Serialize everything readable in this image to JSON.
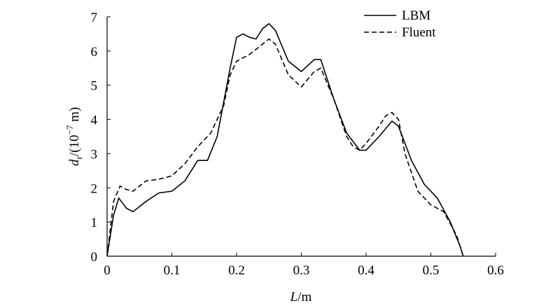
{
  "chart_data": {
    "type": "line",
    "x_label": [
      "L",
      "/m"
    ],
    "y_label": [
      "d",
      "r",
      "/(10",
      "−7",
      " m)"
    ],
    "xlim": [
      0,
      0.6
    ],
    "xticks": [
      0,
      0.1,
      0.2,
      0.3,
      0.4,
      0.5,
      0.6
    ],
    "ylim": [
      0,
      7
    ],
    "yticks": [
      0,
      1,
      2,
      3,
      4,
      5,
      6,
      7
    ],
    "legend": "upper right",
    "series": [
      {
        "name": "LBM",
        "color": "#000000",
        "dash": "solid",
        "x": [
          0,
          0.01,
          0.018,
          0.03,
          0.04,
          0.06,
          0.08,
          0.1,
          0.12,
          0.14,
          0.155,
          0.17,
          0.19,
          0.2,
          0.21,
          0.22,
          0.23,
          0.24,
          0.25,
          0.26,
          0.28,
          0.3,
          0.32,
          0.33,
          0.35,
          0.37,
          0.39,
          0.4,
          0.42,
          0.44,
          0.45,
          0.47,
          0.49,
          0.51,
          0.53,
          0.545,
          0.55
        ],
        "values": [
          0,
          1.2,
          1.7,
          1.4,
          1.3,
          1.6,
          1.85,
          1.9,
          2.2,
          2.8,
          2.8,
          3.5,
          5.5,
          6.4,
          6.5,
          6.4,
          6.35,
          6.65,
          6.8,
          6.6,
          5.7,
          5.4,
          5.75,
          5.75,
          4.6,
          3.6,
          3.1,
          3.1,
          3.5,
          3.95,
          3.8,
          2.8,
          2.1,
          1.7,
          1.0,
          0.3,
          0
        ]
      },
      {
        "name": "Fluent",
        "color": "#000000",
        "dash": "dashed",
        "x": [
          0,
          0.01,
          0.02,
          0.03,
          0.04,
          0.06,
          0.08,
          0.1,
          0.12,
          0.14,
          0.16,
          0.18,
          0.19,
          0.2,
          0.22,
          0.24,
          0.25,
          0.26,
          0.28,
          0.3,
          0.32,
          0.33,
          0.35,
          0.37,
          0.38,
          0.39,
          0.4,
          0.42,
          0.43,
          0.44,
          0.45,
          0.46,
          0.48,
          0.5,
          0.52,
          0.54,
          0.55
        ],
        "values": [
          0,
          1.6,
          2.05,
          1.95,
          1.9,
          2.2,
          2.25,
          2.35,
          2.7,
          3.2,
          3.6,
          4.4,
          5.3,
          5.7,
          5.9,
          6.2,
          6.35,
          6.2,
          5.3,
          4.95,
          5.4,
          5.5,
          4.6,
          3.5,
          3.2,
          3.1,
          3.3,
          3.8,
          4.1,
          4.2,
          4.0,
          3.0,
          1.9,
          1.5,
          1.3,
          0.6,
          0
        ]
      }
    ]
  }
}
